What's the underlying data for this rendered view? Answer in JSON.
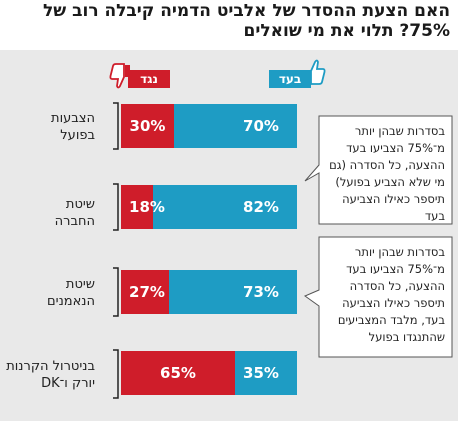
{
  "title": {
    "line1": "האם הצעת ההסדר של אלביט הדמיה קיבלה רוב של",
    "line2": "75%? תלוי את מי שואלים"
  },
  "legend": {
    "for_label": "בעד",
    "against_label": "נגד",
    "for_color": "#1e9cc4",
    "against_color": "#cf1d2a",
    "for_icon": "thumbs-up-icon",
    "against_icon": "thumbs-down-icon"
  },
  "notes": [
    "בסדרות שבהן יותר מ־75% הצביעו בעד ההצעה, כל הסדרה (גם מי שלא הצביע בפועל) תיספר כאילו הצביעה בעד",
    "בסדרות שבהן יותר מ־75% הצביעו בעד ההצעה, כל הסדרה תיספר כאילו הצביעה בעד, מלבד המצביעים שהתנגדו בפועל"
  ],
  "chart_data": {
    "type": "bar",
    "orientation": "horizontal",
    "stacked": true,
    "title": "האם הצעת ההסדר של אלביט הדמיה קיבלה רוב של 75%? תלוי את מי שואלים",
    "categories": [
      [
        "הצבעות",
        "בפועל"
      ],
      [
        "שיטת",
        "החברה"
      ],
      [
        "שיטת",
        "הנאמנים"
      ],
      [
        "בניטרול הקרנות",
        "יורק ו־DK"
      ]
    ],
    "series": [
      {
        "name": "בעד",
        "values": [
          70,
          82,
          73,
          35
        ],
        "labels": [
          "70%",
          "82%",
          "73%",
          "35%"
        ],
        "color": "#1e9cc4"
      },
      {
        "name": "נגד",
        "values": [
          30,
          18,
          27,
          65
        ],
        "labels": [
          "30%",
          "18%",
          "27%",
          "65%"
        ],
        "color": "#cf1d2a"
      }
    ],
    "xlim": [
      0,
      100
    ],
    "grid": false
  }
}
